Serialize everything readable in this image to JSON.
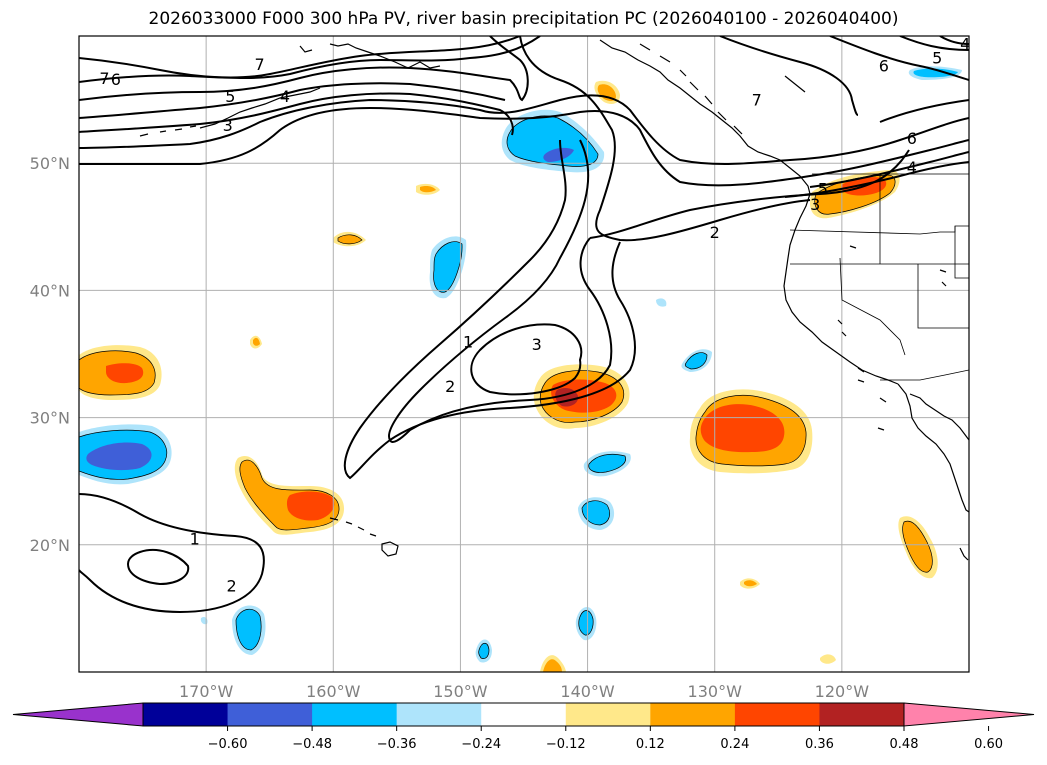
{
  "title": "2026033000 F000 300 hPa PV, river basin precipitation PC (2026040100 - 2026040400)",
  "map": {
    "lon_range": [
      -180,
      -110
    ],
    "lat_range": [
      10,
      60
    ],
    "lat_labels": [
      {
        "lat": 50,
        "label": "50°N"
      },
      {
        "lat": 40,
        "label": "40°N"
      },
      {
        "lat": 30,
        "label": "30°N"
      },
      {
        "lat": 20,
        "label": "20°N"
      }
    ],
    "lon_labels": [
      {
        "lon": -170,
        "label": "170°W"
      },
      {
        "lon": -160,
        "label": "160°W"
      },
      {
        "lon": -150,
        "label": "150°W"
      },
      {
        "lon": -140,
        "label": "140°W"
      },
      {
        "lon": -130,
        "label": "130°W"
      },
      {
        "lon": -120,
        "label": "120°W"
      }
    ]
  },
  "pv_contour_labels": [
    {
      "text": "7",
      "lon": -178.0,
      "lat": 56.7
    },
    {
      "text": "6",
      "lon": -177.1,
      "lat": 56.6
    },
    {
      "text": "5",
      "lon": -168.1,
      "lat": 55.3
    },
    {
      "text": "4",
      "lon": -163.8,
      "lat": 55.3
    },
    {
      "text": "3",
      "lon": -168.3,
      "lat": 53.0
    },
    {
      "text": "7",
      "lon": -165.8,
      "lat": 57.8
    },
    {
      "text": "6",
      "lon": -116.7,
      "lat": 57.7
    },
    {
      "text": "5",
      "lon": -112.5,
      "lat": 58.3
    },
    {
      "text": "4",
      "lon": -110.3,
      "lat": 59.4
    },
    {
      "text": "7",
      "lon": -126.7,
      "lat": 55.0
    },
    {
      "text": "6",
      "lon": -114.5,
      "lat": 52.0
    },
    {
      "text": "4",
      "lon": -114.5,
      "lat": 49.7
    },
    {
      "text": "5",
      "lon": -121.5,
      "lat": 48.0
    },
    {
      "text": "3",
      "lon": -122.1,
      "lat": 46.8
    },
    {
      "text": "2",
      "lon": -130.0,
      "lat": 44.6
    },
    {
      "text": "1",
      "lon": -149.4,
      "lat": 36.0
    },
    {
      "text": "3",
      "lon": -144.0,
      "lat": 35.8
    },
    {
      "text": "2",
      "lon": -150.8,
      "lat": 32.5
    },
    {
      "text": "1",
      "lon": -170.9,
      "lat": 20.5
    },
    {
      "text": "2",
      "lon": -168.0,
      "lat": 16.8
    }
  ],
  "colorbar": {
    "levels": [
      -0.6,
      -0.48,
      -0.36,
      -0.24,
      -0.12,
      0.12,
      0.24,
      0.36,
      0.48,
      0.6
    ],
    "tick_labels": [
      "−0.60",
      "−0.48",
      "−0.36",
      "−0.24",
      "−0.12",
      "0.12",
      "0.24",
      "0.36",
      "0.48",
      "0.60"
    ],
    "colors": [
      "#000099",
      "#3f5fd8",
      "#00bfff",
      "#aee4fb",
      "#ffffff",
      "#ffe88a",
      "#ffa500",
      "#ff4500",
      "#b22222"
    ],
    "under_color": "#9932cc",
    "over_color": "#ff82ab"
  },
  "colors": {
    "contour": "#000000",
    "coast": "#000000",
    "grid": "#b0b0b0",
    "axis_label": "#808080"
  }
}
